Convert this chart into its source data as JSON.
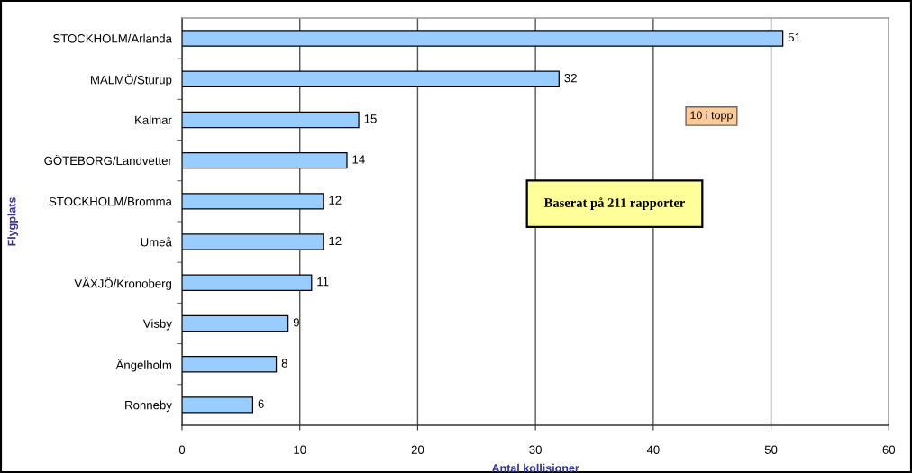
{
  "chart_data": {
    "type": "bar",
    "orientation": "horizontal",
    "categories": [
      "STOCKHOLM/Arlanda",
      "MALMÖ/Sturup",
      "Kalmar",
      "GÖTEBORG/Landvetter",
      "STOCKHOLM/Bromma",
      "Umeå",
      "VÄXJÖ/Kronoberg",
      "Visby",
      "Ängelholm",
      "Ronneby"
    ],
    "values": [
      51,
      32,
      15,
      14,
      12,
      12,
      11,
      9,
      8,
      6
    ],
    "color": "#99ccff",
    "xlabel": "Antal kollisioner",
    "ylabel": "Flygplats",
    "xlim": [
      0,
      60
    ],
    "xticks": [
      0,
      10,
      20,
      30,
      40,
      50,
      60
    ],
    "grid": "x",
    "data_labels": true,
    "annotations": [
      "10 i topp",
      "Baserat på 211 rapporter"
    ]
  }
}
